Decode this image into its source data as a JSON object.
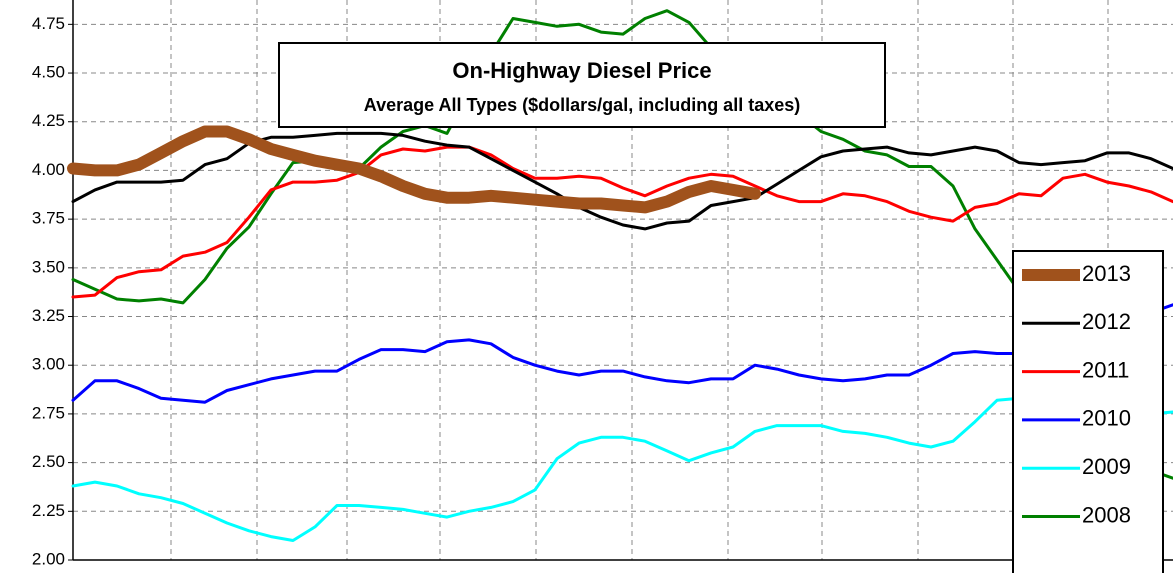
{
  "chart_data": {
    "type": "line",
    "title": "On-Highway Diesel Price",
    "subtitle": "Average All Types ($dollars/gal, including all taxes)",
    "categories": [
      null,
      null,
      null,
      null,
      null,
      null,
      null,
      null,
      null,
      null,
      null,
      null,
      null,
      null,
      null,
      null,
      null,
      null,
      null,
      null,
      null,
      null,
      null,
      null,
      null,
      null,
      null,
      null,
      null,
      null,
      null,
      null,
      null,
      null,
      null,
      null,
      null,
      null,
      null,
      null,
      null,
      null,
      null,
      null,
      null,
      null,
      null,
      null,
      null,
      null,
      null
    ],
    "ylim": [
      2,
      4.875
    ],
    "yticks": [
      {
        "value": 2,
        "label": "2.00"
      },
      {
        "value": 2.25,
        "label": "2.25"
      },
      {
        "value": 2.5,
        "label": "2.50"
      },
      {
        "value": 2.75,
        "label": "2.75"
      },
      {
        "value": 3,
        "label": "3.00"
      },
      {
        "value": 3.25,
        "label": "3.25"
      },
      {
        "value": 3.5,
        "label": "3.50"
      },
      {
        "value": 3.75,
        "label": "3.75"
      },
      {
        "value": 4,
        "label": "4.00"
      },
      {
        "value": 4.25,
        "label": "4.25"
      },
      {
        "value": 4.5,
        "label": "4.50"
      },
      {
        "value": 4.75,
        "label": "4.75"
      }
    ],
    "grid": true,
    "legend": "right",
    "series": [
      {
        "name": "2013",
        "color": "#a0521c",
        "values": [
          4.01,
          4.0,
          4.0,
          4.03,
          4.09,
          4.15,
          4.2,
          4.2,
          4.16,
          4.11,
          4.08,
          4.05,
          4.03,
          4.01,
          3.97,
          3.92,
          3.88,
          3.86,
          3.86,
          3.87,
          3.86,
          3.85,
          3.84,
          3.83,
          3.83,
          3.82,
          3.81,
          3.84,
          3.89,
          3.92,
          3.9,
          3.88,
          null,
          null,
          null,
          null,
          null,
          null,
          null,
          null,
          null,
          null,
          null,
          null,
          null,
          null,
          null,
          null,
          null,
          null,
          null
        ]
      },
      {
        "name": "2012",
        "color": "#000000",
        "values": [
          3.84,
          3.9,
          3.94,
          3.94,
          3.94,
          3.95,
          4.03,
          4.06,
          4.14,
          4.17,
          4.17,
          4.18,
          4.19,
          4.19,
          4.19,
          4.18,
          4.15,
          4.13,
          4.12,
          4.06,
          4.0,
          3.94,
          3.88,
          3.81,
          3.76,
          3.72,
          3.7,
          3.73,
          3.74,
          3.82,
          3.84,
          3.86,
          3.93,
          4.0,
          4.07,
          4.1,
          4.11,
          4.12,
          4.09,
          4.08,
          4.1,
          4.12,
          4.1,
          4.04,
          4.03,
          4.04,
          4.05,
          4.09,
          4.09,
          4.06,
          4.01
        ]
      },
      {
        "name": "2011",
        "color": "#ff0000",
        "values": [
          3.35,
          3.36,
          3.45,
          3.48,
          3.49,
          3.56,
          3.58,
          3.63,
          3.76,
          3.9,
          3.94,
          3.94,
          3.95,
          3.99,
          4.08,
          4.11,
          4.1,
          4.12,
          4.12,
          4.08,
          4.01,
          3.96,
          3.96,
          3.97,
          3.96,
          3.91,
          3.87,
          3.92,
          3.96,
          3.98,
          3.97,
          3.92,
          3.87,
          3.84,
          3.84,
          3.88,
          3.87,
          3.84,
          3.79,
          3.76,
          3.74,
          3.81,
          3.83,
          3.88,
          3.87,
          3.96,
          3.98,
          3.94,
          3.92,
          3.89,
          3.84
        ]
      },
      {
        "name": "2010",
        "color": "#0000ff",
        "values": [
          2.82,
          2.92,
          2.92,
          2.88,
          2.83,
          2.82,
          2.81,
          2.87,
          2.9,
          2.93,
          2.95,
          2.97,
          2.97,
          3.03,
          3.08,
          3.08,
          3.07,
          3.12,
          3.13,
          3.11,
          3.04,
          3.0,
          2.97,
          2.95,
          2.97,
          2.97,
          2.94,
          2.92,
          2.91,
          2.93,
          2.93,
          3.0,
          2.98,
          2.95,
          2.93,
          2.92,
          2.93,
          2.95,
          2.95,
          3.0,
          3.06,
          3.07,
          3.06,
          3.06,
          3.12,
          3.17,
          3.2,
          3.22,
          3.24,
          3.27,
          3.31
        ]
      },
      {
        "name": "2009",
        "color": "#00ffff",
        "values": [
          2.38,
          2.4,
          2.38,
          2.34,
          2.32,
          2.29,
          2.24,
          2.19,
          2.15,
          2.12,
          2.1,
          2.17,
          2.28,
          2.28,
          2.27,
          2.26,
          2.24,
          2.22,
          2.25,
          2.27,
          2.3,
          2.36,
          2.52,
          2.6,
          2.63,
          2.63,
          2.61,
          2.56,
          2.51,
          2.55,
          2.58,
          2.66,
          2.69,
          2.69,
          2.69,
          2.66,
          2.65,
          2.63,
          2.6,
          2.58,
          2.61,
          2.71,
          2.82,
          2.83,
          2.8,
          2.76,
          2.74,
          2.74,
          2.74,
          2.75,
          2.76
        ]
      },
      {
        "name": "2008",
        "color": "#008000",
        "values": [
          3.44,
          3.39,
          3.34,
          3.33,
          3.34,
          3.32,
          3.44,
          3.6,
          3.71,
          3.88,
          4.04,
          4.05,
          4.02,
          4.01,
          4.12,
          4.2,
          4.23,
          4.19,
          4.4,
          4.6,
          4.78,
          4.76,
          4.74,
          4.75,
          4.71,
          4.7,
          4.78,
          4.82,
          4.76,
          4.63,
          4.56,
          4.45,
          4.39,
          4.29,
          4.2,
          4.16,
          4.1,
          4.08,
          4.02,
          4.02,
          3.92,
          3.7,
          3.54,
          3.38,
          3.19,
          3.03,
          2.88,
          2.75,
          2.58,
          2.46,
          2.42
        ]
      }
    ]
  }
}
